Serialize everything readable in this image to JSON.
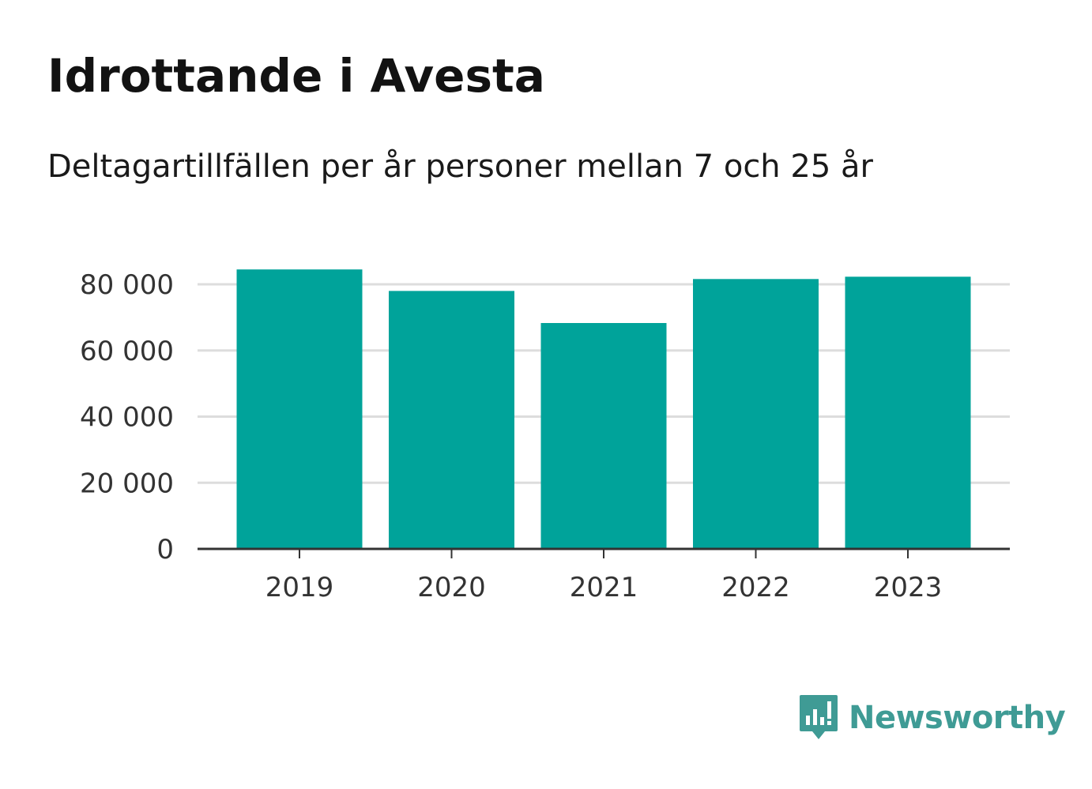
{
  "title": "Idrottande i Avesta",
  "subtitle": "Deltagartillfällen per år personer mellan 7 och 25 år",
  "brand": {
    "name": "Newsworthy",
    "icon": "newsworthy-logo-icon",
    "color": "#3f9b95"
  },
  "colors": {
    "bar": "#00a39a",
    "grid": "#dddddd",
    "axis": "#333333",
    "tick_text": "#333333"
  },
  "chart_data": {
    "type": "bar",
    "categories": [
      "2019",
      "2020",
      "2021",
      "2022",
      "2023"
    ],
    "values": [
      84500,
      78000,
      68300,
      81600,
      82300
    ],
    "ylim": [
      0,
      80000
    ],
    "yticks": [
      0,
      20000,
      40000,
      60000,
      80000
    ],
    "ytick_labels": [
      "0",
      "20 000",
      "40 000",
      "60 000",
      "80 000"
    ],
    "grid": true,
    "xlabel": "",
    "ylabel": ""
  }
}
